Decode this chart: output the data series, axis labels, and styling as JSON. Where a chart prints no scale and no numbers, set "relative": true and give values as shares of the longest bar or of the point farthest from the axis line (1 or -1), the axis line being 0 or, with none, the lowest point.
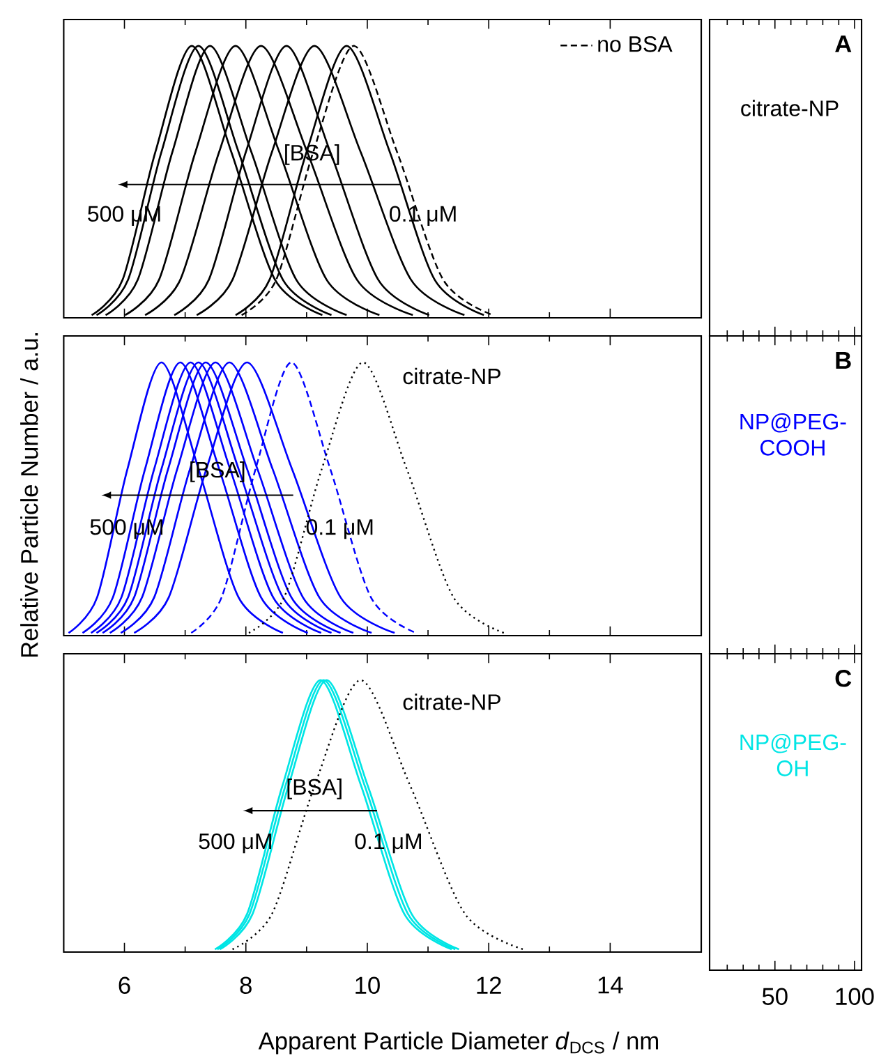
{
  "chart_data": [
    {
      "type": "line",
      "relative": true,
      "xlim": [
        5,
        15.5
      ],
      "xticks": [
        6,
        8,
        10,
        12,
        14
      ],
      "tick_labels": false,
      "legend": "top right",
      "annotations": [
        "[BSA]",
        "500 μM",
        "0.1 μM"
      ],
      "series": [
        {
          "name": "citrate-NP",
          "color": "#000000",
          "x": [
            5.46,
            5.97,
            6.51,
            7.11,
            7.76,
            8.48,
            9.26
          ],
          "values": [
            0.01,
            0.14,
            0.61,
            1,
            0.61,
            0.14,
            0.01
          ]
        },
        {
          "color": "#000000",
          "x": [
            5.54,
            6.06,
            6.61,
            7.22,
            7.88,
            8.61,
            9.41
          ],
          "values": [
            0.01,
            0.14,
            0.61,
            1,
            0.61,
            0.14,
            0.01
          ]
        },
        {
          "color": "#000000",
          "x": [
            5.69,
            6.22,
            6.79,
            7.41,
            8.09,
            8.83,
            9.66
          ],
          "values": [
            0.01,
            0.14,
            0.61,
            1,
            0.61,
            0.14,
            0.01
          ]
        },
        {
          "color": "#000000",
          "x": [
            6.01,
            6.57,
            7.17,
            7.83,
            8.55,
            9.33,
            10.2
          ],
          "values": [
            0.01,
            0.14,
            0.61,
            1,
            0.61,
            0.14,
            0.01
          ]
        },
        {
          "color": "#000000",
          "x": [
            6.34,
            6.92,
            7.56,
            8.25,
            9.01,
            9.83,
            10.75
          ],
          "values": [
            0.01,
            0.14,
            0.61,
            1,
            0.61,
            0.14,
            0.01
          ]
        },
        {
          "color": "#000000",
          "x": [
            6.82,
            7.39,
            8.0,
            8.67,
            9.39,
            10.18,
            11.02
          ],
          "values": [
            0.01,
            0.14,
            0.61,
            1,
            0.61,
            0.14,
            0.01
          ]
        },
        {
          "color": "#000000",
          "x": [
            7.19,
            7.78,
            8.43,
            9.13,
            9.89,
            10.72,
            11.6
          ],
          "values": [
            0.01,
            0.14,
            0.61,
            1,
            0.61,
            0.14,
            0.01
          ]
        },
        {
          "color": "#000000",
          "x": [
            7.83,
            8.39,
            9.0,
            9.66,
            10.37,
            11.11,
            11.92
          ],
          "values": [
            0.01,
            0.14,
            0.61,
            1,
            0.61,
            0.14,
            0.01
          ]
        },
        {
          "name": "no BSA",
          "color": "#000000",
          "line_style": "dashed",
          "x": [
            7.93,
            8.5,
            9.11,
            9.78,
            10.49,
            11.25,
            12.07
          ],
          "values": [
            0.01,
            0.14,
            0.61,
            1,
            0.61,
            0.14,
            0.01
          ]
        }
      ]
    },
    {
      "type": "other",
      "annotations": [
        "A"
      ]
    },
    {
      "type": "line",
      "relative": true,
      "xlim": [
        5,
        15.5
      ],
      "xticks": [
        6,
        8,
        10,
        12,
        14
      ],
      "tick_labels": false,
      "ylabel": "Relative Particle Number / a.u.",
      "annotations": [
        "[BSA]",
        "500 μM",
        "0.1 μM"
      ],
      "series": [
        {
          "name": "NP@PEG-COOH",
          "color": "#0000ff",
          "x": [
            5.08,
            5.55,
            6.05,
            6.61,
            7.22,
            7.88,
            8.61
          ],
          "values": [
            0.01,
            0.14,
            0.61,
            1,
            0.61,
            0.14,
            0.01
          ]
        },
        {
          "color": "#0000ff",
          "x": [
            5.31,
            5.81,
            6.34,
            6.92,
            7.56,
            8.25,
            9.02
          ],
          "values": [
            0.01,
            0.14,
            0.61,
            1,
            0.61,
            0.14,
            0.01
          ]
        },
        {
          "color": "#0000ff",
          "x": [
            5.45,
            5.95,
            6.49,
            7.09,
            7.74,
            8.45,
            9.24
          ],
          "values": [
            0.01,
            0.14,
            0.61,
            1,
            0.61,
            0.14,
            0.01
          ]
        },
        {
          "color": "#0000ff",
          "x": [
            5.54,
            6.06,
            6.61,
            7.22,
            7.88,
            8.61,
            9.41
          ],
          "values": [
            0.01,
            0.14,
            0.61,
            1,
            0.61,
            0.14,
            0.01
          ]
        },
        {
          "color": "#0000ff",
          "x": [
            5.64,
            6.16,
            6.72,
            7.34,
            8.02,
            8.75,
            9.56
          ],
          "values": [
            0.01,
            0.14,
            0.61,
            1,
            0.61,
            0.14,
            0.01
          ]
        },
        {
          "color": "#0000ff",
          "x": [
            5.76,
            6.29,
            6.87,
            7.5,
            8.19,
            8.94,
            9.77
          ],
          "values": [
            0.01,
            0.14,
            0.61,
            1,
            0.61,
            0.14,
            0.01
          ]
        },
        {
          "color": "#0000ff",
          "x": [
            5.94,
            6.49,
            7.08,
            7.73,
            8.44,
            9.21,
            10.07
          ],
          "values": [
            0.01,
            0.14,
            0.61,
            1,
            0.61,
            0.14,
            0.01
          ]
        },
        {
          "color": "#0000ff",
          "x": [
            6.16,
            6.73,
            7.35,
            8.02,
            8.76,
            9.56,
            10.45
          ],
          "values": [
            0.01,
            0.14,
            0.61,
            1,
            0.61,
            0.14,
            0.01
          ]
        },
        {
          "color": "#0000ff",
          "line_style": "dashed",
          "x": [
            7.1,
            7.6,
            8.16,
            8.75,
            9.39,
            10.06,
            10.8
          ],
          "values": [
            0.01,
            0.14,
            0.61,
            1,
            0.61,
            0.14,
            0.01
          ]
        },
        {
          "name": "citrate-NP",
          "color": "#000000",
          "line_style": "dotted",
          "x": [
            8.05,
            8.63,
            9.25,
            9.93,
            10.65,
            11.42,
            12.25
          ],
          "values": [
            0.01,
            0.14,
            0.61,
            1,
            0.61,
            0.14,
            0.01
          ]
        }
      ]
    },
    {
      "type": "other",
      "annotations": [
        "B"
      ]
    },
    {
      "type": "line",
      "relative": true,
      "xlim": [
        5,
        15.5
      ],
      "xticks": [
        6,
        8,
        10,
        12,
        14
      ],
      "tick_labels": "x",
      "xlabel": "Apparent Particle Diameter *d*$_{DCS}$ / nm",
      "annotations": [
        "[BSA]",
        "500 μM",
        "0.1 μM"
      ],
      "series": [
        {
          "name": "NP@PEG-OH",
          "color": "#00e5e5",
          "x": [
            7.49,
            8.02,
            8.6,
            9.23,
            9.9,
            10.61,
            11.39
          ],
          "values": [
            0.01,
            0.14,
            0.61,
            1,
            0.61,
            0.14,
            0.01
          ]
        },
        {
          "color": "#00e5e5",
          "x": [
            7.53,
            8.06,
            8.65,
            9.28,
            9.96,
            10.67,
            11.45
          ],
          "values": [
            0.01,
            0.14,
            0.61,
            1,
            0.61,
            0.14,
            0.01
          ]
        },
        {
          "color": "#00e5e5",
          "x": [
            7.57,
            8.11,
            8.7,
            9.33,
            10.01,
            10.73,
            11.51
          ],
          "values": [
            0.01,
            0.14,
            0.61,
            1,
            0.61,
            0.14,
            0.01
          ]
        },
        {
          "name": "citrate-NP",
          "color": "#000000",
          "line_style": "dotted",
          "x": [
            7.78,
            8.43,
            9.13,
            9.89,
            10.71,
            11.61,
            12.57
          ],
          "values": [
            0.01,
            0.14,
            0.61,
            1,
            0.61,
            0.14,
            0.01
          ]
        }
      ]
    },
    {
      "type": "other",
      "annotations": [
        "C",
        "50",
        "100"
      ]
    }
  ]
}
